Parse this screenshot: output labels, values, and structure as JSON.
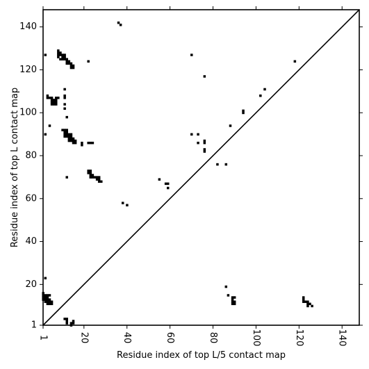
{
  "chart_data": {
    "type": "scatter",
    "xlabel": "Residue index of top L/5 contact map",
    "ylabel": "Residue index of top L contact map",
    "xlim": [
      1,
      148
    ],
    "ylim": [
      1,
      148
    ],
    "x_ticks": [
      1,
      20,
      40,
      60,
      80,
      100,
      120,
      140
    ],
    "y_ticks": [
      1,
      20,
      40,
      60,
      80,
      100,
      120,
      140
    ],
    "grid": false,
    "diagonal": true,
    "marker": "square",
    "color": "#000000",
    "upper_points": [
      [
        36,
        142
      ],
      [
        37,
        141
      ],
      [
        2,
        127
      ],
      [
        8,
        129
      ],
      [
        8,
        128
      ],
      [
        9,
        128
      ],
      [
        9,
        127
      ],
      [
        10,
        127
      ],
      [
        10,
        126
      ],
      [
        11,
        127
      ],
      [
        11,
        126
      ],
      [
        8,
        127
      ],
      [
        8,
        126
      ],
      [
        9,
        125
      ],
      [
        10,
        125
      ],
      [
        11,
        125
      ],
      [
        12,
        125
      ],
      [
        12,
        124
      ],
      [
        13,
        124
      ],
      [
        13,
        123
      ],
      [
        14,
        123
      ],
      [
        14,
        122
      ],
      [
        15,
        122
      ],
      [
        15,
        121
      ],
      [
        14,
        121
      ],
      [
        22,
        124
      ],
      [
        12,
        123
      ],
      [
        11,
        111
      ],
      [
        11,
        108
      ],
      [
        11,
        107
      ],
      [
        11,
        104
      ],
      [
        11,
        102
      ],
      [
        12,
        98
      ],
      [
        4,
        94
      ],
      [
        2,
        90
      ],
      [
        3,
        108
      ],
      [
        3,
        107
      ],
      [
        4,
        107
      ],
      [
        5,
        107
      ],
      [
        5,
        106
      ],
      [
        5,
        105
      ],
      [
        6,
        106
      ],
      [
        6,
        105
      ],
      [
        6,
        104
      ],
      [
        5,
        104
      ],
      [
        7,
        107
      ],
      [
        7,
        106
      ],
      [
        7,
        105
      ],
      [
        7,
        104
      ],
      [
        8,
        107
      ],
      [
        10,
        92
      ],
      [
        11,
        92
      ],
      [
        12,
        92
      ],
      [
        11,
        91
      ],
      [
        11,
        90
      ],
      [
        12,
        91
      ],
      [
        12,
        90
      ],
      [
        12,
        89
      ],
      [
        11,
        89
      ],
      [
        13,
        90
      ],
      [
        13,
        89
      ],
      [
        13,
        88
      ],
      [
        14,
        90
      ],
      [
        14,
        89
      ],
      [
        14,
        88
      ],
      [
        14,
        87
      ],
      [
        13,
        87
      ],
      [
        15,
        88
      ],
      [
        15,
        87
      ],
      [
        16,
        87
      ],
      [
        16,
        86
      ],
      [
        15,
        86
      ],
      [
        19,
        86
      ],
      [
        19,
        85
      ],
      [
        22,
        86
      ],
      [
        23,
        86
      ],
      [
        24,
        86
      ],
      [
        12,
        70
      ],
      [
        22,
        73
      ],
      [
        23,
        73
      ],
      [
        22,
        72
      ],
      [
        23,
        72
      ],
      [
        23,
        71
      ],
      [
        24,
        71
      ],
      [
        23,
        70
      ],
      [
        24,
        70
      ],
      [
        25,
        70
      ],
      [
        26,
        70
      ],
      [
        27,
        70
      ],
      [
        26,
        69
      ],
      [
        27,
        69
      ],
      [
        27,
        68
      ],
      [
        28,
        68
      ],
      [
        38,
        58
      ],
      [
        40,
        57
      ],
      [
        55,
        69
      ],
      [
        58,
        67
      ],
      [
        59,
        67
      ],
      [
        59,
        65
      ],
      [
        70,
        127
      ],
      [
        76,
        117
      ],
      [
        70,
        90
      ],
      [
        73,
        90
      ],
      [
        73,
        86
      ],
      [
        76,
        87
      ],
      [
        76,
        86
      ],
      [
        76,
        83
      ],
      [
        76,
        82
      ],
      [
        82,
        76
      ],
      [
        86,
        76
      ],
      [
        88,
        94
      ],
      [
        94,
        101
      ],
      [
        94,
        100
      ],
      [
        102,
        108
      ],
      [
        104,
        111
      ],
      [
        118,
        124
      ]
    ],
    "lower_points": [
      [
        1,
        16
      ],
      [
        1,
        15
      ],
      [
        1,
        14
      ],
      [
        1,
        13
      ],
      [
        2,
        15
      ],
      [
        2,
        14
      ],
      [
        2,
        13
      ],
      [
        2,
        12
      ],
      [
        3,
        15
      ],
      [
        3,
        14
      ],
      [
        3,
        13
      ],
      [
        3,
        12
      ],
      [
        3,
        11
      ],
      [
        4,
        15
      ],
      [
        4,
        13
      ],
      [
        4,
        12
      ],
      [
        4,
        11
      ],
      [
        5,
        12
      ],
      [
        5,
        11
      ],
      [
        2,
        23
      ],
      [
        11,
        4
      ],
      [
        12,
        4
      ],
      [
        12,
        3
      ],
      [
        12,
        2
      ],
      [
        14,
        2
      ],
      [
        14,
        1
      ],
      [
        15,
        2
      ],
      [
        15,
        3
      ],
      [
        86,
        19
      ],
      [
        87,
        15
      ],
      [
        89,
        14
      ],
      [
        90,
        14
      ],
      [
        89,
        13
      ],
      [
        89,
        12
      ],
      [
        90,
        12
      ],
      [
        89,
        11
      ],
      [
        90,
        11
      ],
      [
        122,
        14
      ],
      [
        122,
        13
      ],
      [
        122,
        12
      ],
      [
        123,
        12
      ],
      [
        124,
        12
      ],
      [
        124,
        11
      ],
      [
        125,
        11
      ],
      [
        124,
        10
      ],
      [
        126,
        10
      ]
    ]
  }
}
